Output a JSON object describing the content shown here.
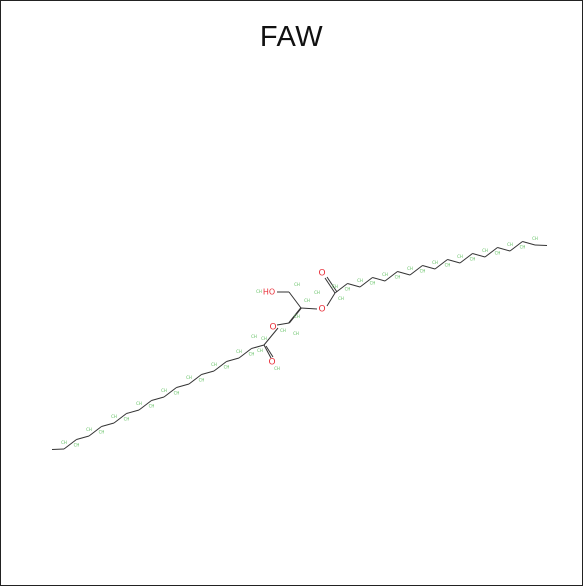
{
  "figure": {
    "title": "FAW"
  },
  "molecule": {
    "bond_color": "#333333",
    "oxygen_color": "#e8303a",
    "hydrogen_label_color": "#5fbf5f",
    "hetero_labels": {
      "hydroxyl": "HO",
      "ester_oxygen_1": "O",
      "ester_oxygen_2": "O",
      "carbonyl_oxygen_1": "O",
      "carbonyl_oxygen_2": "O"
    },
    "hydrogen_tag": "CH"
  }
}
